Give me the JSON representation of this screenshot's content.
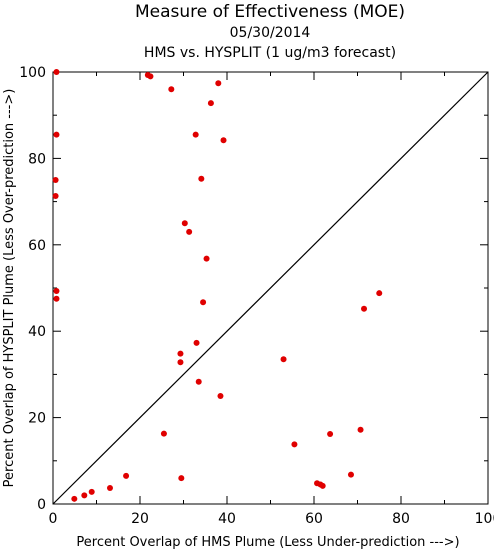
{
  "chart_data": {
    "type": "scatter",
    "title": "Measure of Effectiveness (MOE)",
    "subtitle_date": "05/30/2014",
    "subtitle_desc": "HMS vs. HYSPLIT  (1 ug/m3 forecast)",
    "xlabel": "Percent Overlap of HMS Plume (Less Under-prediction --->)",
    "ylabel": "Percent Overlap of HYSPLIT Plume (Less Over-prediction --->)",
    "xlim": [
      0,
      100
    ],
    "ylim": [
      0,
      100
    ],
    "xticks": [
      0,
      20,
      40,
      60,
      80,
      100
    ],
    "yticks": [
      0,
      20,
      40,
      60,
      80,
      100
    ],
    "grid": false,
    "reference_line": {
      "from": [
        0,
        0
      ],
      "to": [
        100,
        100
      ]
    },
    "marker_color": "#e00000",
    "points": [
      {
        "x": 0.8,
        "y": 100
      },
      {
        "x": 0.8,
        "y": 85.5
      },
      {
        "x": 0.6,
        "y": 75
      },
      {
        "x": 0.6,
        "y": 71.3
      },
      {
        "x": 0.8,
        "y": 49.3
      },
      {
        "x": 0.8,
        "y": 47.5
      },
      {
        "x": 21.8,
        "y": 99.3
      },
      {
        "x": 22.4,
        "y": 99
      },
      {
        "x": 27.2,
        "y": 96
      },
      {
        "x": 38,
        "y": 97.4
      },
      {
        "x": 36.3,
        "y": 92.8
      },
      {
        "x": 32.8,
        "y": 85.5
      },
      {
        "x": 39.2,
        "y": 84.2
      },
      {
        "x": 34.1,
        "y": 75.3
      },
      {
        "x": 30.3,
        "y": 65
      },
      {
        "x": 31.3,
        "y": 63
      },
      {
        "x": 35.3,
        "y": 56.8
      },
      {
        "x": 34.5,
        "y": 46.7
      },
      {
        "x": 33,
        "y": 37.3
      },
      {
        "x": 29.3,
        "y": 34.8
      },
      {
        "x": 29.3,
        "y": 32.8
      },
      {
        "x": 33.5,
        "y": 28.3
      },
      {
        "x": 38.5,
        "y": 25
      },
      {
        "x": 25.5,
        "y": 16.3
      },
      {
        "x": 29.5,
        "y": 6
      },
      {
        "x": 4.9,
        "y": 1.2
      },
      {
        "x": 7.2,
        "y": 2
      },
      {
        "x": 8.9,
        "y": 2.8
      },
      {
        "x": 13.1,
        "y": 3.7
      },
      {
        "x": 16.8,
        "y": 6.5
      },
      {
        "x": 53,
        "y": 33.5
      },
      {
        "x": 55.5,
        "y": 13.8
      },
      {
        "x": 63.7,
        "y": 16.2
      },
      {
        "x": 70.7,
        "y": 17.2
      },
      {
        "x": 68.5,
        "y": 6.8
      },
      {
        "x": 60.7,
        "y": 4.8
      },
      {
        "x": 61.5,
        "y": 4.5
      },
      {
        "x": 62,
        "y": 4.2
      },
      {
        "x": 71.5,
        "y": 45.2
      },
      {
        "x": 75,
        "y": 48.8
      }
    ]
  }
}
